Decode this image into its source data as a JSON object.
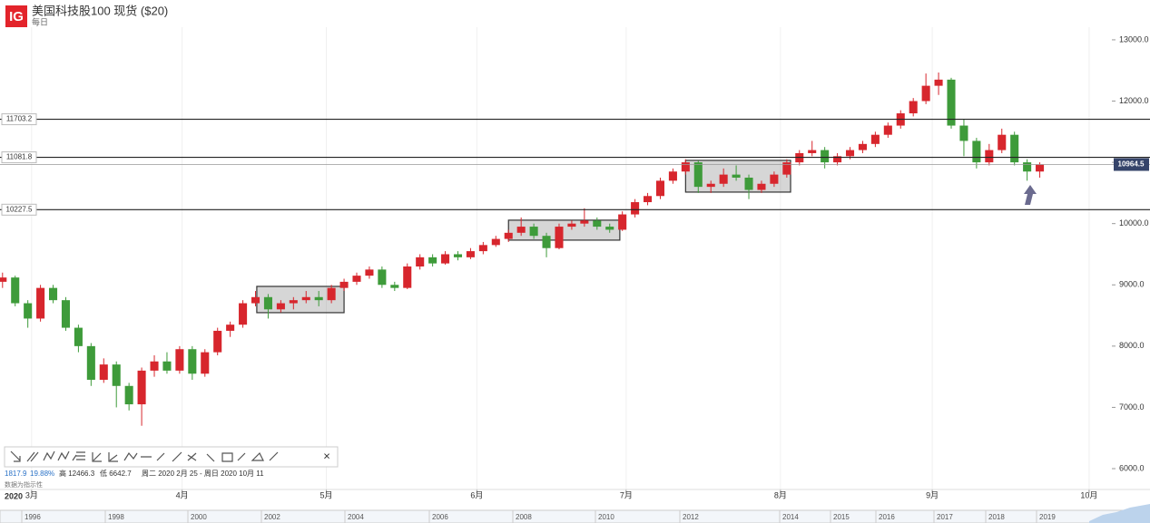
{
  "header": {
    "logo": "IG",
    "title": "美国科技股100 现货 ($20)",
    "subtitle": "每日"
  },
  "stats": {
    "change": "1817.9",
    "pct": "19.88%",
    "high": "高 12466.3",
    "low": "低 6642.7",
    "range": "周二 2020 2月 25 - 周日 2020 10月 11",
    "note": "数据为指示性",
    "year": "2020"
  },
  "navigator": {
    "years": [
      "1996",
      "1998",
      "2000",
      "2002",
      "2004",
      "2006",
      "2008",
      "2010",
      "2012",
      "2014",
      "2015",
      "2016",
      "2017",
      "2018",
      "2019"
    ]
  },
  "toolbar": {
    "close": "×"
  },
  "chart_data": {
    "type": "candlestick",
    "up_color": "#d7262d",
    "down_color": "#3e9b3a",
    "ylim": [
      5660,
      13650
    ],
    "yticks": [
      {
        "value": 6000,
        "label": "6000.0"
      },
      {
        "value": 7000,
        "label": "7000.0"
      },
      {
        "value": 8000,
        "label": "8000.0"
      },
      {
        "value": 9000,
        "label": "9000.0"
      },
      {
        "value": 10000,
        "label": "10000.0"
      },
      {
        "value": 11000,
        "label": "11000.0"
      },
      {
        "value": 12000,
        "label": "12000.0"
      },
      {
        "value": 13000,
        "label": "13000.0"
      }
    ],
    "xlim": [
      -0.2,
      87.7
    ],
    "xticks": [
      {
        "value": 2.3,
        "label": "3月"
      },
      {
        "value": 14.2,
        "label": "4月"
      },
      {
        "value": 25.6,
        "label": "5月"
      },
      {
        "value": 37.5,
        "label": "6月"
      },
      {
        "value": 49.3,
        "label": "7月"
      },
      {
        "value": 61.5,
        "label": "8月"
      },
      {
        "value": 73.5,
        "label": "9月"
      },
      {
        "value": 85.9,
        "label": "10月"
      }
    ],
    "levels": [
      11703.2,
      11081.8,
      10227.5
    ],
    "last_price": 10964.5,
    "boxes": [
      {
        "x": [
          20.1,
          27.0
        ],
        "y": [
          8546,
          8975
        ]
      },
      {
        "x": [
          40.0,
          48.8
        ],
        "y": [
          9730,
          10056
        ]
      },
      {
        "x": [
          54.0,
          62.3
        ],
        "y": [
          10514,
          11032
        ]
      }
    ],
    "ohlc": [
      [
        9050,
        9200,
        8950,
        9120
      ],
      [
        9120,
        9150,
        8650,
        8700
      ],
      [
        8700,
        8750,
        8300,
        8450
      ],
      [
        8450,
        9000,
        8400,
        8950
      ],
      [
        8950,
        9000,
        8700,
        8750
      ],
      [
        8750,
        8800,
        8250,
        8300
      ],
      [
        8300,
        8350,
        7900,
        8000
      ],
      [
        8000,
        8050,
        7350,
        7450
      ],
      [
        7450,
        7800,
        7400,
        7700
      ],
      [
        7700,
        7750,
        7000,
        7350
      ],
      [
        7350,
        7400,
        6950,
        7050
      ],
      [
        7050,
        7650,
        6700,
        7600
      ],
      [
        7600,
        7850,
        7500,
        7750
      ],
      [
        7750,
        7900,
        7550,
        7600
      ],
      [
        7600,
        8000,
        7550,
        7950
      ],
      [
        7950,
        8000,
        7450,
        7550
      ],
      [
        7550,
        7950,
        7500,
        7900
      ],
      [
        7900,
        8300,
        7850,
        8250
      ],
      [
        8250,
        8400,
        8150,
        8350
      ],
      [
        8350,
        8750,
        8300,
        8700
      ],
      [
        8700,
        8900,
        8650,
        8800
      ],
      [
        8800,
        8850,
        8450,
        8600
      ],
      [
        8600,
        8750,
        8550,
        8700
      ],
      [
        8700,
        8800,
        8600,
        8750
      ],
      [
        8750,
        8900,
        8700,
        8800
      ],
      [
        8800,
        8900,
        8650,
        8750
      ],
      [
        8750,
        9000,
        8700,
        8950
      ],
      [
        8950,
        9100,
        8900,
        9050
      ],
      [
        9050,
        9200,
        9000,
        9150
      ],
      [
        9150,
        9300,
        9100,
        9250
      ],
      [
        9250,
        9300,
        8950,
        9000
      ],
      [
        9000,
        9050,
        8900,
        8950
      ],
      [
        8950,
        9350,
        8930,
        9300
      ],
      [
        9300,
        9500,
        9250,
        9450
      ],
      [
        9450,
        9500,
        9300,
        9350
      ],
      [
        9350,
        9550,
        9330,
        9500
      ],
      [
        9500,
        9550,
        9400,
        9450
      ],
      [
        9450,
        9600,
        9420,
        9550
      ],
      [
        9550,
        9700,
        9500,
        9650
      ],
      [
        9650,
        9800,
        9620,
        9750
      ],
      [
        9750,
        9900,
        9700,
        9850
      ],
      [
        9850,
        10100,
        9800,
        9950
      ],
      [
        9950,
        10000,
        9750,
        9800
      ],
      [
        9800,
        9850,
        9450,
        9600
      ],
      [
        9600,
        10000,
        9580,
        9950
      ],
      [
        9950,
        10050,
        9900,
        10000
      ],
      [
        10000,
        10250,
        9950,
        10050
      ],
      [
        10050,
        10100,
        9900,
        9950
      ],
      [
        9950,
        10000,
        9850,
        9900
      ],
      [
        9900,
        10200,
        9880,
        10150
      ],
      [
        10150,
        10400,
        10100,
        10350
      ],
      [
        10350,
        10500,
        10300,
        10450
      ],
      [
        10450,
        10750,
        10400,
        10700
      ],
      [
        10700,
        10900,
        10650,
        10850
      ],
      [
        10850,
        11050,
        10800,
        11000
      ],
      [
        11000,
        11030,
        10500,
        10600
      ],
      [
        10600,
        10700,
        10500,
        10650
      ],
      [
        10650,
        10900,
        10600,
        10800
      ],
      [
        10800,
        10950,
        10700,
        10750
      ],
      [
        10750,
        10800,
        10400,
        10550
      ],
      [
        10550,
        10700,
        10500,
        10650
      ],
      [
        10650,
        10850,
        10600,
        10800
      ],
      [
        10800,
        11050,
        10750,
        11000
      ],
      [
        11000,
        11200,
        10950,
        11150
      ],
      [
        11150,
        11350,
        11100,
        11200
      ],
      [
        11200,
        11250,
        10900,
        11000
      ],
      [
        11000,
        11150,
        10950,
        11100
      ],
      [
        11100,
        11250,
        11050,
        11200
      ],
      [
        11200,
        11350,
        11150,
        11300
      ],
      [
        11300,
        11500,
        11250,
        11450
      ],
      [
        11450,
        11650,
        11400,
        11600
      ],
      [
        11600,
        11850,
        11550,
        11800
      ],
      [
        11800,
        12050,
        11750,
        12000
      ],
      [
        12000,
        12450,
        11950,
        12250
      ],
      [
        12250,
        12466.3,
        12100,
        12350
      ],
      [
        12350,
        12380,
        11550,
        11600
      ],
      [
        11600,
        11700,
        11100,
        11350
      ],
      [
        11350,
        11400,
        10900,
        11000
      ],
      [
        11000,
        11300,
        10950,
        11200
      ],
      [
        11200,
        11550,
        11150,
        11450
      ],
      [
        11450,
        11500,
        10950,
        11000
      ],
      [
        11000,
        11050,
        10700,
        10850
      ],
      [
        10850,
        11000,
        10750,
        10964.5
      ]
    ]
  }
}
